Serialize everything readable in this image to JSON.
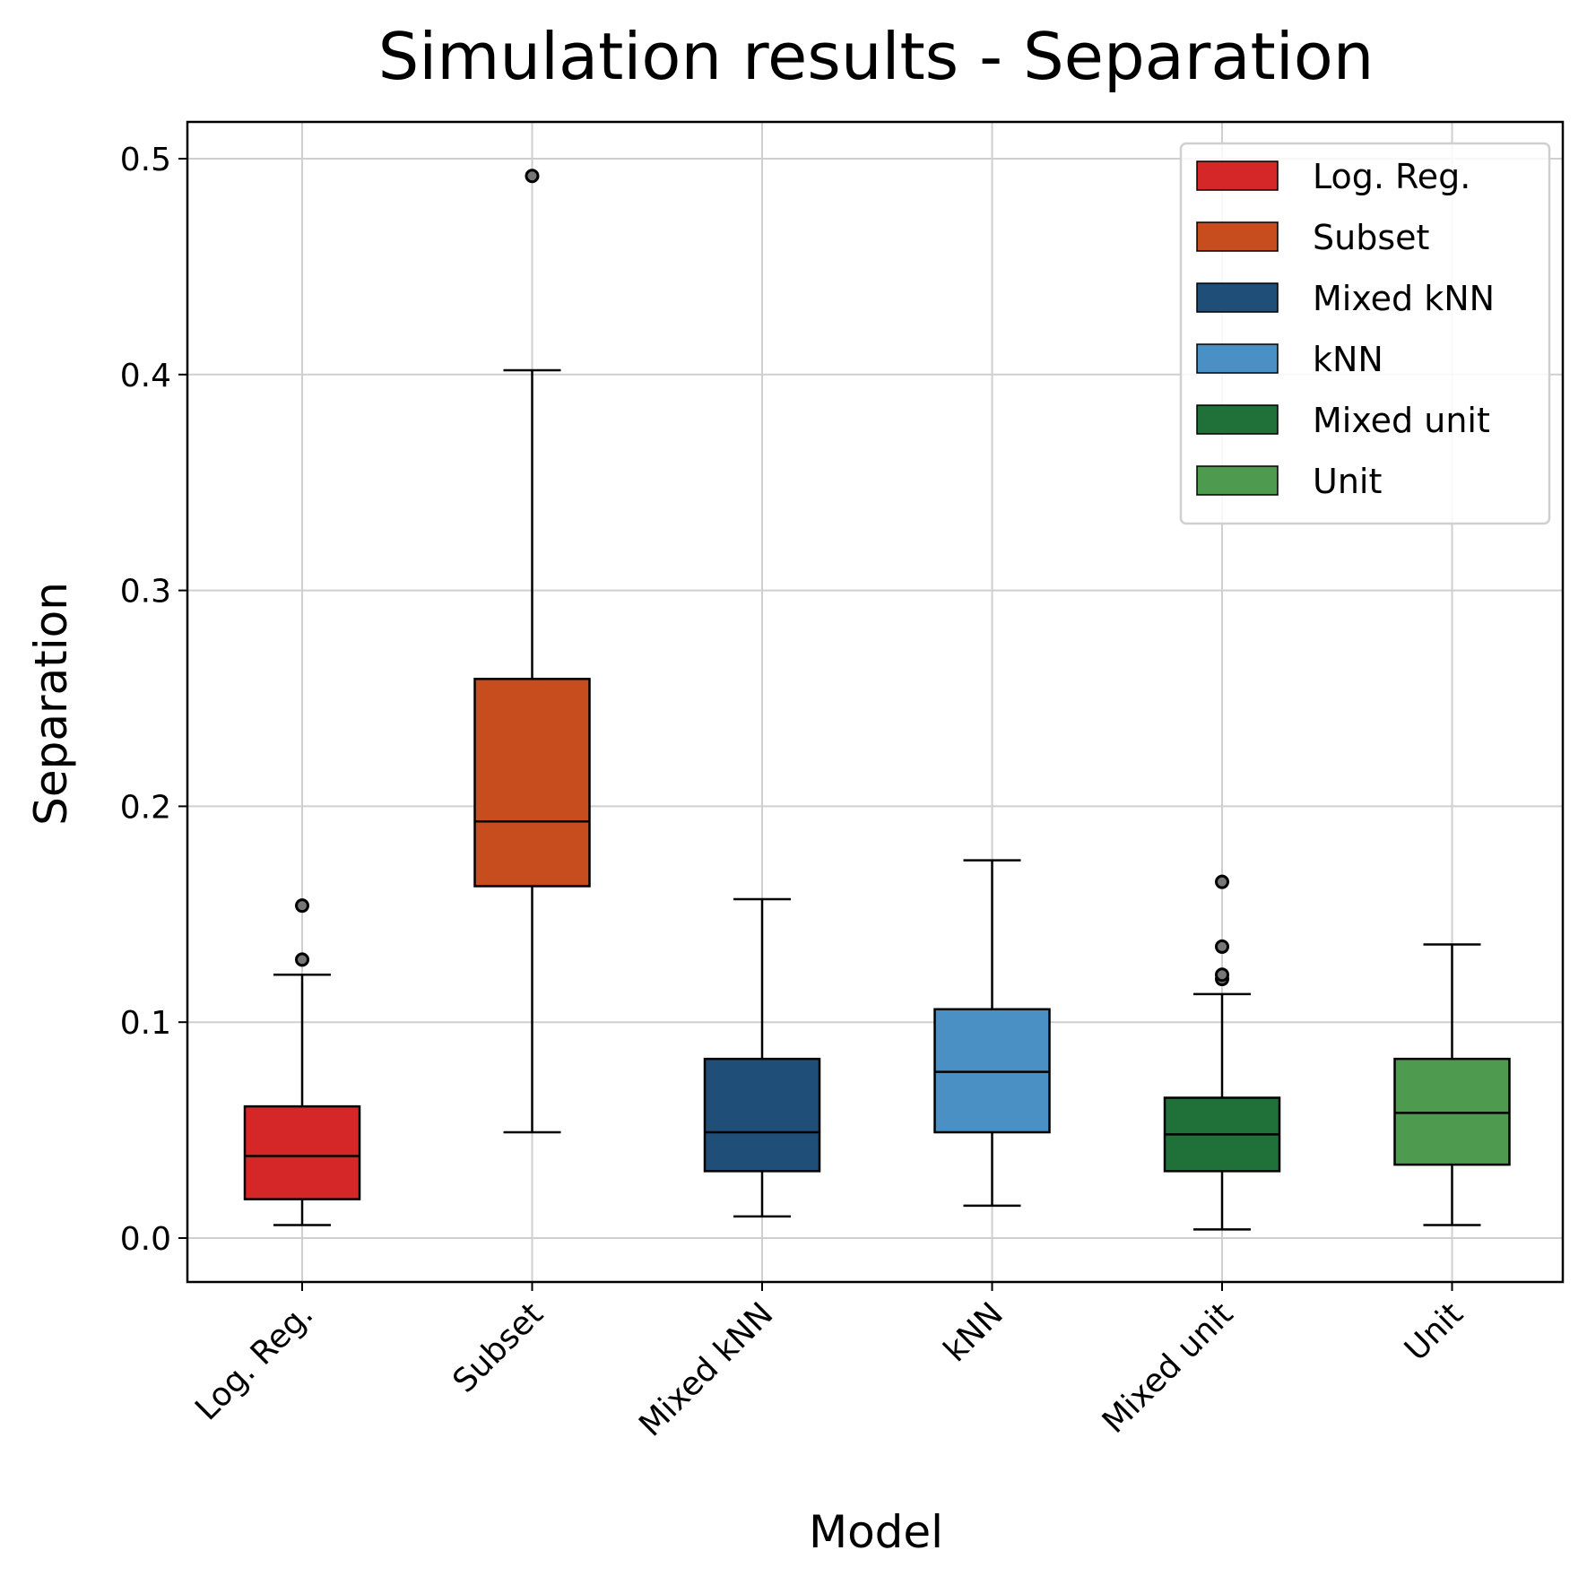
{
  "chart_data": {
    "type": "boxplot",
    "title": "Simulation results - Separation",
    "xlabel": "Model",
    "ylabel": "Separation",
    "ylim": [
      -0.02,
      0.517
    ],
    "yticks": [
      0.0,
      0.1,
      0.2,
      0.3,
      0.4,
      0.5
    ],
    "ytick_labels": [
      "0.0",
      "0.1",
      "0.2",
      "0.3",
      "0.4",
      "0.5"
    ],
    "grid": true,
    "legend_position": "top-right",
    "series": [
      {
        "name": "Log. Reg.",
        "color": "#d62728",
        "whisker_low": 0.006,
        "q1": 0.018,
        "median": 0.038,
        "q3": 0.061,
        "whisker_high": 0.122,
        "outliers": [
          0.129,
          0.154
        ]
      },
      {
        "name": "Subset",
        "color": "#c84d1e",
        "whisker_low": 0.049,
        "q1": 0.163,
        "median": 0.193,
        "q3": 0.259,
        "whisker_high": 0.402,
        "outliers": [
          0.492
        ]
      },
      {
        "name": "Mixed kNN",
        "color": "#1f4e79",
        "whisker_low": 0.01,
        "q1": 0.031,
        "median": 0.049,
        "q3": 0.083,
        "whisker_high": 0.157,
        "outliers": []
      },
      {
        "name": "kNN",
        "color": "#4a90c4",
        "whisker_low": 0.015,
        "q1": 0.049,
        "median": 0.077,
        "q3": 0.106,
        "whisker_high": 0.175,
        "outliers": []
      },
      {
        "name": "Mixed unit",
        "color": "#20703a",
        "whisker_low": 0.004,
        "q1": 0.031,
        "median": 0.048,
        "q3": 0.065,
        "whisker_high": 0.113,
        "outliers": [
          0.12,
          0.122,
          0.135,
          0.165
        ]
      },
      {
        "name": "Unit",
        "color": "#4e9a4e",
        "whisker_low": 0.006,
        "q1": 0.034,
        "median": 0.058,
        "q3": 0.083,
        "whisker_high": 0.136,
        "outliers": []
      }
    ]
  }
}
